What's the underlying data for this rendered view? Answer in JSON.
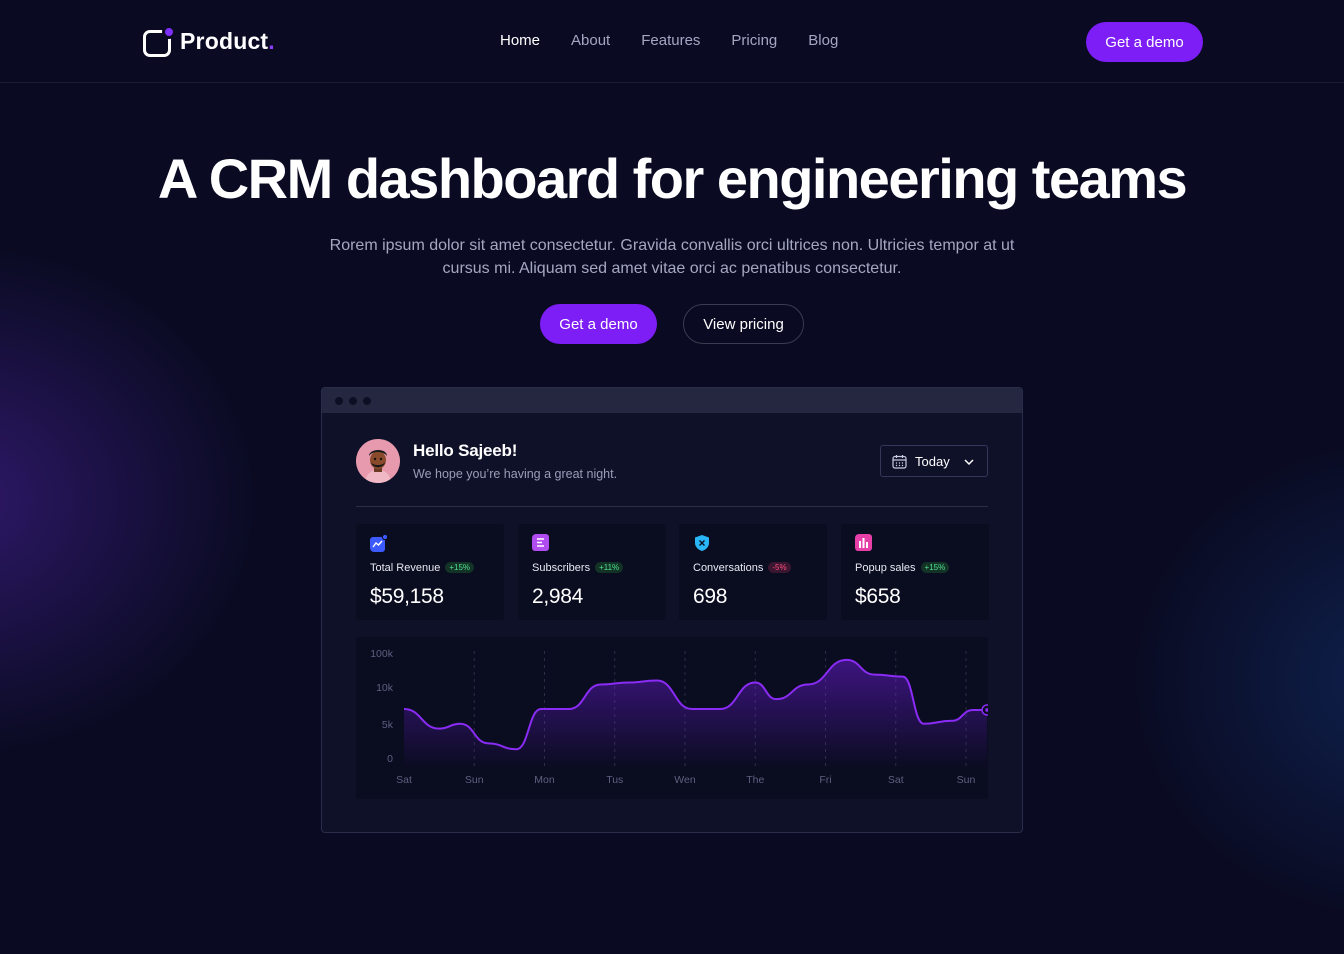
{
  "nav": {
    "logo_text": "Product",
    "logo_period": ".",
    "links": [
      "Home",
      "About",
      "Features",
      "Pricing",
      "Blog"
    ],
    "active_link": "Home",
    "cta_label": "Get a demo"
  },
  "hero": {
    "title": "A CRM dashboard for engineering teams",
    "subtitle": "Rorem ipsum dolor sit amet consectetur. Gravida convallis orci ultrices non. Ultricies tempor at ut cursus mi. Aliquam sed amet vitae orci ac penatibus consectetur.",
    "primary_cta": "Get a demo",
    "secondary_cta": "View pricing"
  },
  "dashboard": {
    "greeting": "Hello Sajeeb!",
    "greeting_sub": "We hope you’re having a great night.",
    "date_range": "Today",
    "stats": [
      {
        "label": "Total Revenue",
        "badge": "+15%",
        "trend": "up",
        "value": "$59,158",
        "icon": "chart-line-icon",
        "color": "#3d5afe"
      },
      {
        "label": "Subscribers",
        "badge": "+11%",
        "trend": "up",
        "value": "2,984",
        "icon": "list-icon",
        "color": "#b14cf0"
      },
      {
        "label": "Conversations",
        "badge": "-5%",
        "trend": "down",
        "value": "698",
        "icon": "shield-icon",
        "color": "#29b6f6"
      },
      {
        "label": "Popup sales",
        "badge": "+15%",
        "trend": "up",
        "value": "$658",
        "icon": "bar-chart-icon",
        "color": "#e63fa8"
      }
    ]
  },
  "colors": {
    "background": "#0a0b23",
    "accent": "#7c1ef5",
    "line": "#8a2cf5",
    "positive": "#4fe08f",
    "negative": "#ff4f7d"
  },
  "chart_data": {
    "type": "area",
    "y_tick_labels": [
      "100k",
      "10k",
      "5k",
      "0"
    ],
    "x_tick_labels": [
      "Sat",
      "Sun",
      "Mon",
      "Tus",
      "Wen",
      "The",
      "Fri",
      "Sat",
      "Sun"
    ],
    "x": [
      0,
      0.5,
      0.8,
      1.2,
      1.6,
      1.95,
      2.35,
      2.8,
      3.2,
      3.6,
      4.1,
      4.5,
      5.0,
      5.3,
      5.75,
      6.3,
      6.7,
      7.1,
      7.4,
      7.8,
      8.1,
      8.3
    ],
    "values": [
      5.5,
      3.5,
      4.0,
      2.0,
      1.4,
      5.5,
      5.5,
      8.0,
      8.2,
      8.4,
      5.5,
      5.5,
      8.2,
      6.5,
      8.0,
      10.5,
      9.0,
      8.8,
      4.0,
      4.3,
      5.4,
      5.4
    ],
    "ylim": [
      0,
      11
    ],
    "grid": "vertical-dashed"
  }
}
